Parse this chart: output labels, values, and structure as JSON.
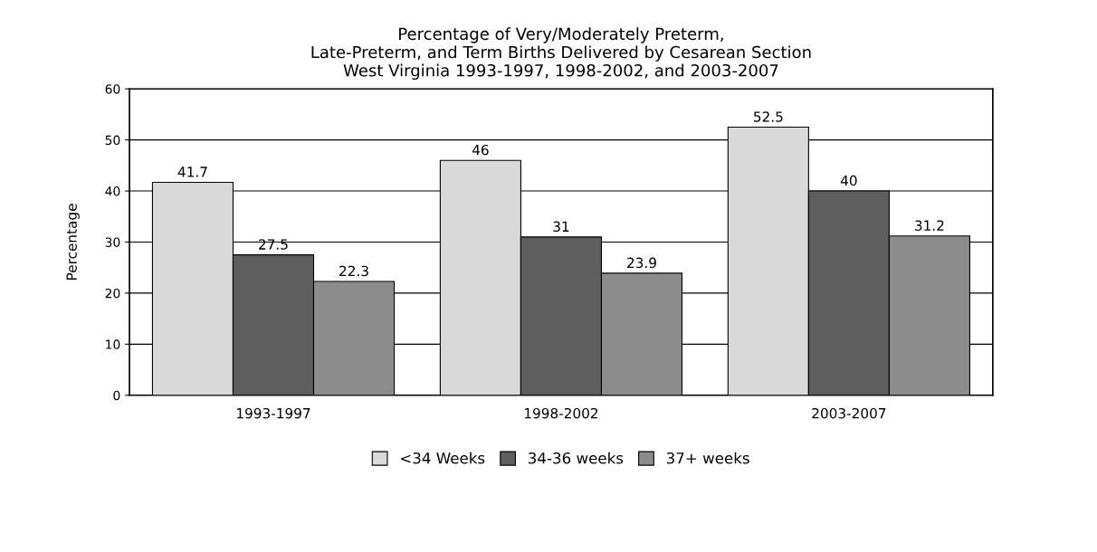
{
  "chart_data": {
    "type": "bar",
    "title": "Percentage of Very/Moderately Preterm,\nLate-Preterm, and Term Births Delivered by Cesarean Section\nWest Virginia 1993-1997, 1998-2002, and 2003-2007",
    "ylabel": "Percentage",
    "categories": [
      "1993-1997",
      "1998-2002",
      "2003-2007"
    ],
    "series": [
      {
        "name": "<34 Weeks",
        "color": "#d9d9d9",
        "values": [
          41.7,
          46,
          52.5
        ]
      },
      {
        "name": "34-36 weeks",
        "color": "#5e5e5e",
        "values": [
          27.5,
          31,
          40
        ]
      },
      {
        "name": "37+ weeks",
        "color": "#8c8c8c",
        "values": [
          22.3,
          23.9,
          31.2
        ]
      }
    ],
    "ylim": [
      0,
      60
    ],
    "yticks": [
      0,
      10,
      20,
      30,
      40,
      50,
      60
    ],
    "grid": "y",
    "legend": "bottom",
    "data_labels": true
  }
}
